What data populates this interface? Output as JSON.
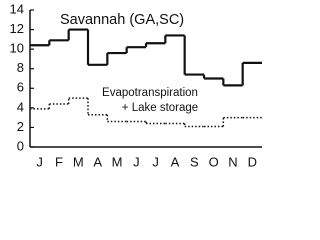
{
  "chart_data": {
    "type": "step",
    "title": "Savannah (GA,SC)",
    "annotation": [
      "Evapotranspiration",
      "+ Lake storage"
    ],
    "categories": [
      "J",
      "F",
      "M",
      "A",
      "M",
      "J",
      "J",
      "A",
      "S",
      "O",
      "N",
      "D"
    ],
    "series": [
      {
        "color": "#111111",
        "style": "solid",
        "values": [
          10.4,
          10.9,
          12.0,
          8.4,
          9.6,
          10.2,
          10.6,
          11.4,
          7.4,
          7.0,
          6.3,
          8.6
        ]
      },
      {
        "color": "#111111",
        "style": "dotted",
        "values": [
          3.9,
          4.4,
          5.0,
          3.3,
          2.6,
          2.6,
          2.4,
          2.4,
          2.1,
          2.1,
          3.0,
          3.0
        ]
      }
    ],
    "ylim": [
      0,
      14
    ],
    "yticks": [
      0,
      2,
      4,
      6,
      8,
      10,
      12,
      14
    ]
  }
}
